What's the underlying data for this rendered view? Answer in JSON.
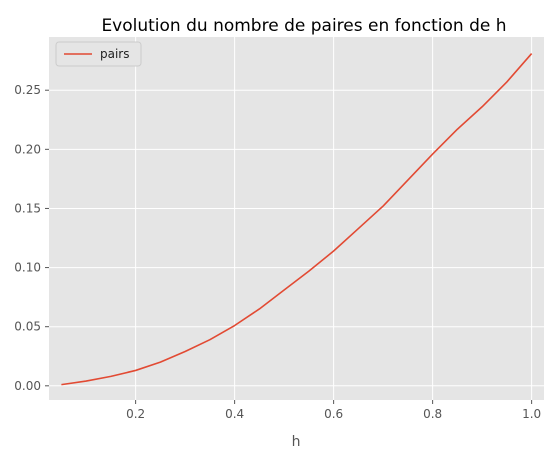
{
  "chart_data": {
    "type": "line",
    "title": "Evolution du nombre de paires en fonction de h",
    "xlabel": "h",
    "ylabel": "",
    "xlim": [
      0.025,
      1.025
    ],
    "ylim": [
      -0.012,
      0.295
    ],
    "xticks": [
      0.2,
      0.4,
      0.6,
      0.8,
      1.0
    ],
    "xtick_labels": [
      "0.2",
      "0.4",
      "0.6",
      "0.8",
      "1.0"
    ],
    "yticks": [
      0.0,
      0.05,
      0.1,
      0.15,
      0.2,
      0.25
    ],
    "ytick_labels": [
      "0.00",
      "0.05",
      "0.10",
      "0.15",
      "0.20",
      "0.25"
    ],
    "grid": true,
    "legend_position": "top-left",
    "series": [
      {
        "name": "pairs",
        "color": "#e24a33",
        "x": [
          0.05,
          0.1,
          0.15,
          0.2,
          0.25,
          0.3,
          0.35,
          0.4,
          0.45,
          0.5,
          0.55,
          0.6,
          0.65,
          0.7,
          0.75,
          0.8,
          0.85,
          0.9,
          0.95,
          1.0
        ],
        "y": [
          0.001,
          0.004,
          0.008,
          0.013,
          0.02,
          0.029,
          0.039,
          0.051,
          0.065,
          0.081,
          0.097,
          0.114,
          0.133,
          0.152,
          0.174,
          0.196,
          0.217,
          0.236,
          0.257,
          0.281
        ]
      }
    ]
  }
}
